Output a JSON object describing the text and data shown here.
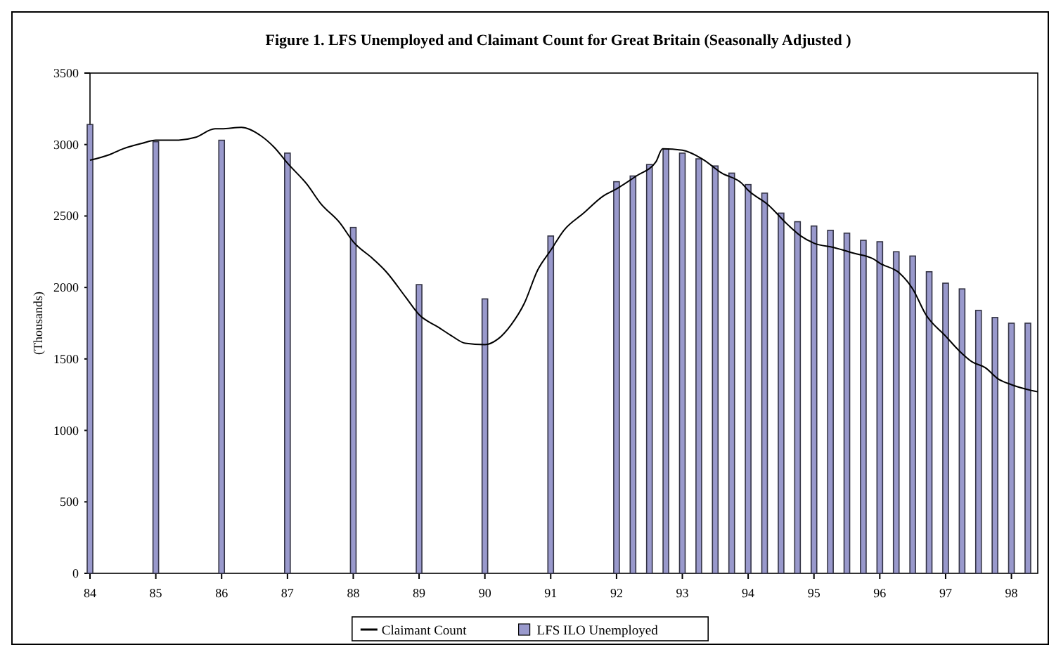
{
  "chart_data": {
    "type": "bar",
    "title": "Figure 1. LFS Unemployed and Claimant Count for Great Britain (Seasonally Adjusted )",
    "ylabel": "(Thousands)",
    "xlim": [
      84,
      98.4
    ],
    "xticks": [
      84,
      85,
      86,
      87,
      88,
      89,
      90,
      91,
      92,
      93,
      94,
      95,
      96,
      97,
      98
    ],
    "ylim": [
      0,
      3500
    ],
    "yticks": [
      0,
      500,
      1000,
      1500,
      2000,
      2500,
      3000,
      3500
    ],
    "grid": false,
    "legend": "bottom",
    "series": [
      {
        "name": "Claimant Count",
        "type": "line",
        "color": "#000000",
        "x": [
          84,
          84.3,
          84.5,
          84.8,
          85,
          85.3,
          85.6,
          85.9,
          86,
          86.3,
          86.6,
          86.8,
          87,
          87.3,
          87.5,
          87.8,
          88,
          88.3,
          88.5,
          88.8,
          89,
          89.3,
          89.5,
          89.7,
          90,
          90.2,
          90.4,
          90.6,
          90.8,
          91,
          91.2,
          91.5,
          91.8,
          92,
          92.3,
          92.6,
          92.7,
          93,
          93.3,
          93.6,
          93.9,
          94,
          94.3,
          94.6,
          94.8,
          95,
          95.3,
          95.6,
          95.9,
          96,
          96.3,
          96.5,
          96.7,
          97,
          97.2,
          97.4,
          97.6,
          97.8,
          98,
          98.3,
          98.4
        ],
        "values": [
          2890,
          2930,
          2970,
          3010,
          3030,
          3030,
          3050,
          3110,
          3110,
          3120,
          3060,
          2980,
          2870,
          2720,
          2590,
          2450,
          2320,
          2200,
          2110,
          1930,
          1810,
          1720,
          1660,
          1610,
          1600,
          1640,
          1740,
          1890,
          2120,
          2260,
          2400,
          2520,
          2640,
          2690,
          2780,
          2880,
          2970,
          2960,
          2900,
          2800,
          2730,
          2680,
          2580,
          2440,
          2360,
          2310,
          2280,
          2240,
          2200,
          2170,
          2100,
          1990,
          1810,
          1660,
          1560,
          1480,
          1440,
          1360,
          1320,
          1280,
          1270
        ]
      },
      {
        "name": "LFS ILO Unemployed",
        "color": "#9999cc",
        "x": [
          84,
          85,
          86,
          87,
          88,
          89,
          90,
          91,
          92,
          92.25,
          92.5,
          92.75,
          93,
          93.25,
          93.5,
          93.75,
          94,
          94.25,
          94.5,
          94.75,
          95,
          95.25,
          95.5,
          95.75,
          96,
          96.25,
          96.5,
          96.75,
          97,
          97.25,
          97.5,
          97.75,
          98,
          98.25
        ],
        "values": [
          3140,
          3020,
          3030,
          2940,
          2420,
          2020,
          1920,
          2360,
          2740,
          2780,
          2860,
          2970,
          2940,
          2900,
          2850,
          2800,
          2720,
          2660,
          2520,
          2460,
          2430,
          2400,
          2380,
          2330,
          2320,
          2250,
          2220,
          2110,
          2030,
          1990,
          1840,
          1790,
          1750,
          1750
        ]
      }
    ]
  }
}
